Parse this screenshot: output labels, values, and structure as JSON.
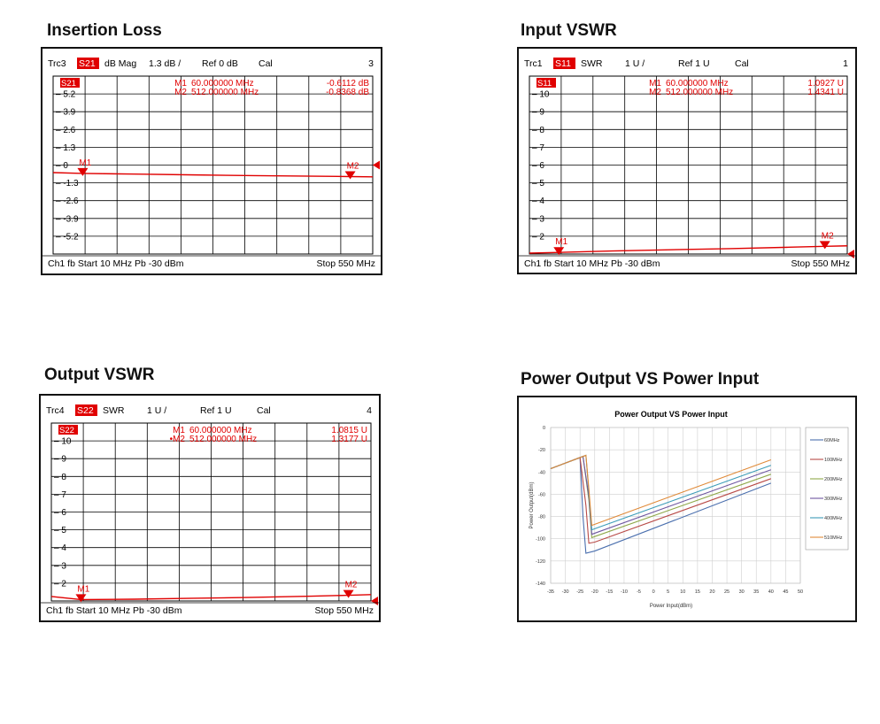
{
  "sections": {
    "insertion_loss": "Insertion Loss",
    "input_vswr": "Input VSWR",
    "output_vswr": "Output VSWR",
    "power": "Power Output VS Power Input"
  },
  "colors": {
    "trace": "#e00000",
    "grid": "#000000",
    "label_bg": "#e00000"
  },
  "chart_data": [
    {
      "id": "insertion_loss",
      "type": "line",
      "header": {
        "trc": "Trc3",
        "param": "S21",
        "format": "dB Mag",
        "scale": "1.3 dB /",
        "ref": "Ref 0 dB",
        "cal": "Cal",
        "num": "3"
      },
      "footer": {
        "left": "Ch1  fb  Start  10 MHz   Pb  -30 dBm",
        "right": "Stop  550 MHz"
      },
      "markers": [
        {
          "name": "M1",
          "freq": "60.000000 MHz",
          "value": "-0.6112 dB",
          "x": 60,
          "y": -0.61
        },
        {
          "name": "M2",
          "freq": "512.000000 MHz",
          "value": "-0.8368 dB",
          "x": 512,
          "y": -0.84
        }
      ],
      "x_range": [
        10,
        550
      ],
      "y_range": [
        -6.5,
        6.5
      ],
      "y_ticks": [
        5.2,
        3.9,
        2.6,
        1.3,
        0,
        -1.3,
        -2.6,
        -3.9,
        -5.2
      ],
      "y_tick_labels": [
        "5.2",
        "3.9",
        "2.6",
        "1.3",
        "0",
        "-1.3",
        "-2.6",
        "-3.9",
        "-5.2"
      ],
      "ref_value": 0,
      "trace": {
        "x": [
          10,
          60,
          150,
          250,
          350,
          450,
          512,
          550
        ],
        "y": [
          -0.55,
          -0.61,
          -0.66,
          -0.72,
          -0.77,
          -0.81,
          -0.84,
          -0.86
        ]
      }
    },
    {
      "id": "input_vswr",
      "type": "line",
      "header": {
        "trc": "Trc1",
        "param": "S11",
        "format": "SWR",
        "scale": "1 U /",
        "ref": "Ref 1 U",
        "cal": "Cal",
        "num": "1"
      },
      "footer": {
        "left": "Ch1  fb  Start  10 MHz   Pb  -30 dBm",
        "right": "Stop  550 MHz"
      },
      "markers": [
        {
          "name": "M1",
          "freq": "60.000000 MHz",
          "value": "1.0927  U",
          "x": 60,
          "y": 1.09
        },
        {
          "name": "M2",
          "freq": "512.000000 MHz",
          "value": "1.4341  U",
          "x": 512,
          "y": 1.43
        }
      ],
      "x_range": [
        10,
        550
      ],
      "y_range": [
        1,
        11
      ],
      "y_ticks": [
        10,
        9,
        8,
        7,
        6,
        5,
        4,
        3,
        2
      ],
      "y_tick_labels": [
        "10",
        "9",
        "8",
        "7",
        "6",
        "5",
        "4",
        "3",
        "2"
      ],
      "ref_value": 1,
      "trace": {
        "x": [
          10,
          60,
          150,
          250,
          350,
          450,
          512,
          550
        ],
        "y": [
          1.05,
          1.09,
          1.17,
          1.24,
          1.3,
          1.38,
          1.43,
          1.46
        ]
      }
    },
    {
      "id": "output_vswr",
      "type": "line",
      "header": {
        "trc": "Trc4",
        "param": "S22",
        "format": "SWR",
        "scale": "1 U /",
        "ref": "Ref 1 U",
        "cal": "Cal",
        "num": "4"
      },
      "footer": {
        "left": "Ch1  fb  Start  10 MHz   Pb  -30 dBm",
        "right": "Stop  550 MHz"
      },
      "markers": [
        {
          "name": "M1",
          "freq": "60.000000 MHz",
          "value": "1.0815  U",
          "x": 60,
          "y": 1.08
        },
        {
          "name": "•M2",
          "freq": "512.000000 MHz",
          "value": "1.3177  U",
          "x": 512,
          "y": 1.32
        }
      ],
      "x_range": [
        10,
        550
      ],
      "y_range": [
        1,
        11
      ],
      "y_ticks": [
        10,
        9,
        8,
        7,
        6,
        5,
        4,
        3,
        2
      ],
      "y_tick_labels": [
        "10",
        "9",
        "8",
        "7",
        "6",
        "5",
        "4",
        "3",
        "2"
      ],
      "ref_value": 1,
      "trace": {
        "x": [
          10,
          60,
          150,
          250,
          350,
          450,
          512,
          550
        ],
        "y": [
          1.25,
          1.08,
          1.1,
          1.15,
          1.2,
          1.27,
          1.32,
          1.36
        ]
      }
    },
    {
      "id": "power",
      "type": "line",
      "title": "Power Output  VS Power Input",
      "xlabel": "Power Input(dBm)",
      "ylabel": "Power Output(dBm)",
      "x_range": [
        -35,
        50
      ],
      "y_range": [
        -140,
        0
      ],
      "x_ticks": [
        -35,
        -30,
        -25,
        -20,
        -15,
        -10,
        -5,
        0,
        5,
        10,
        15,
        20,
        25,
        30,
        35,
        40,
        45,
        50
      ],
      "y_ticks": [
        0,
        -20,
        -40,
        -60,
        -80,
        -100,
        -120,
        -140
      ],
      "legend_position": "right",
      "series": [
        {
          "name": "60MHz",
          "color": "#4a6fae",
          "x": [
            -35,
            -25,
            -24,
            -23,
            -20,
            40
          ],
          "y": [
            -37,
            -27,
            -80,
            -113,
            -111,
            -50
          ]
        },
        {
          "name": "100MHz",
          "color": "#b84a47",
          "x": [
            -35,
            -25,
            -23,
            -22,
            -20,
            40
          ],
          "y": [
            -37,
            -27,
            -70,
            -104,
            -103,
            -46
          ]
        },
        {
          "name": "200MHz",
          "color": "#8fa84a",
          "x": [
            -35,
            -24,
            -22,
            -21,
            -20,
            40
          ],
          "y": [
            -37,
            -26,
            -65,
            -99,
            -98,
            -42
          ]
        },
        {
          "name": "300MHz",
          "color": "#6e56a0",
          "x": [
            -35,
            -24,
            -22,
            -21,
            -20,
            40
          ],
          "y": [
            -37,
            -26,
            -62,
            -96,
            -95,
            -38
          ]
        },
        {
          "name": "400MHz",
          "color": "#3c9cb8",
          "x": [
            -35,
            -23,
            -22,
            -21,
            -20,
            40
          ],
          "y": [
            -37,
            -25,
            -58,
            -92,
            -91,
            -34
          ]
        },
        {
          "name": "510MHz",
          "color": "#e08a38",
          "x": [
            -35,
            -23,
            -22,
            -21,
            -20,
            40
          ],
          "y": [
            -37,
            -25,
            -55,
            -88,
            -87,
            -29
          ]
        }
      ]
    }
  ]
}
